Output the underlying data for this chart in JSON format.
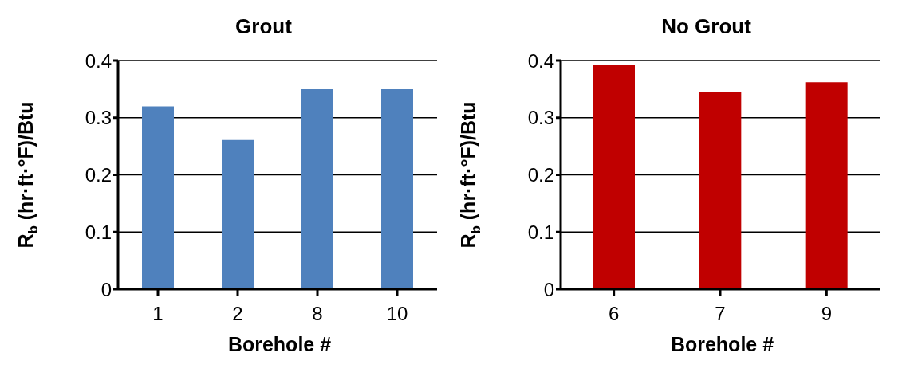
{
  "chart_data": [
    {
      "type": "bar",
      "title": "Grout",
      "xlabel": "Borehole #",
      "ylabel": "R$_{b}$ (hr·ft·°F)/Btu",
      "categories": [
        "1",
        "2",
        "8",
        "10"
      ],
      "values": [
        0.32,
        0.261,
        0.35,
        0.35
      ],
      "color": "#4f81bd",
      "ylim": [
        0,
        0.4
      ],
      "yticks": [
        0,
        0.1,
        0.2,
        0.3,
        0.4
      ],
      "grid": "y"
    },
    {
      "type": "bar",
      "title": "No Grout",
      "xlabel": "Borehole #",
      "ylabel": "R$_{b}$ (hr·ft·°F)/Btu",
      "categories": [
        "6",
        "7",
        "9"
      ],
      "values": [
        0.393,
        0.345,
        0.362
      ],
      "color": "#c00000",
      "ylim": [
        0,
        0.4
      ],
      "yticks": [
        0,
        0.1,
        0.2,
        0.3,
        0.4
      ],
      "grid": "y"
    }
  ]
}
